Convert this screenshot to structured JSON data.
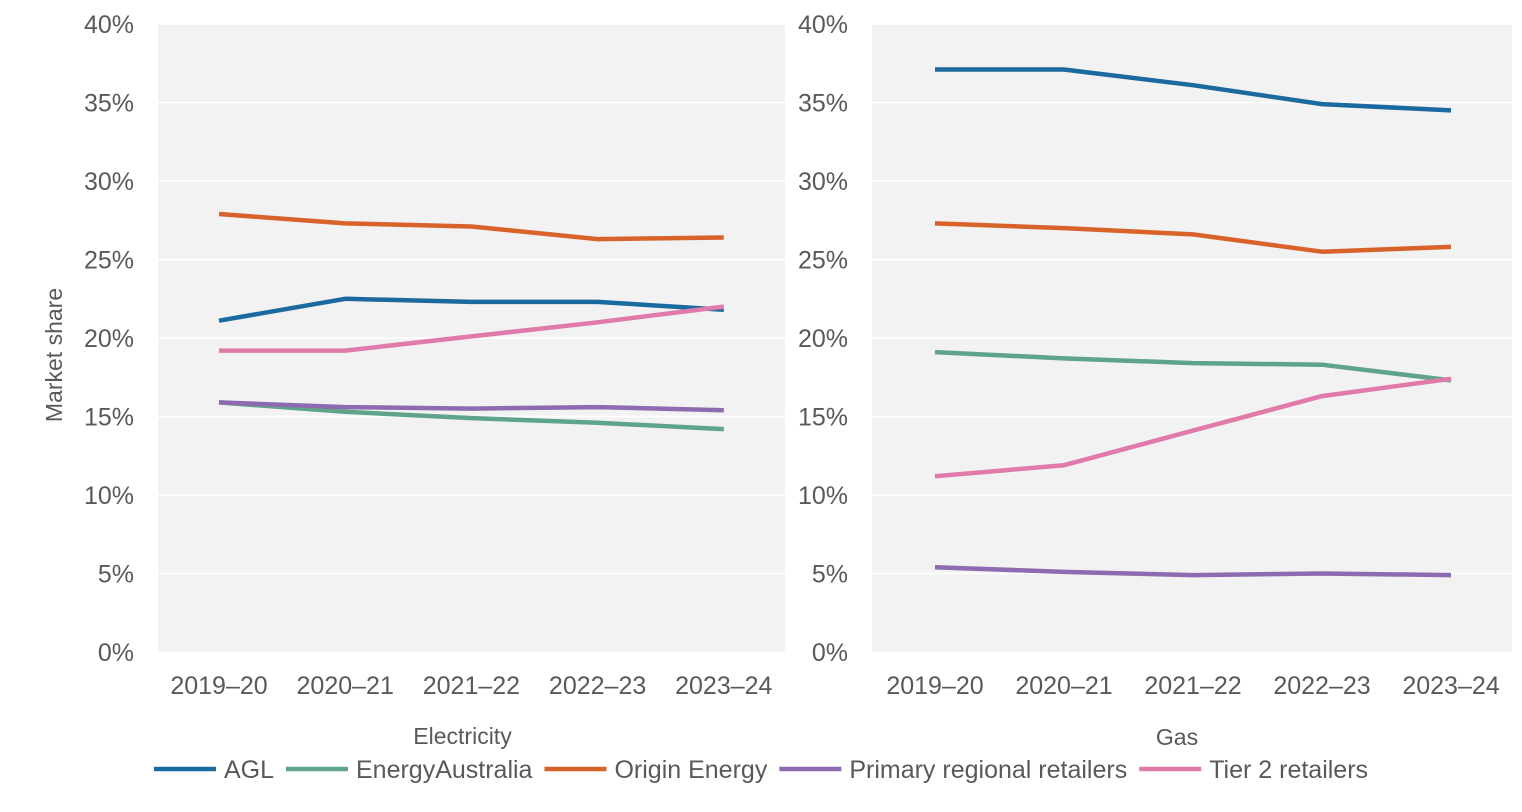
{
  "ylabel": "Market share",
  "legend": [
    {
      "name": "AGL",
      "color": "#1b6a9f"
    },
    {
      "name": "EnergyAustralia",
      "color": "#5fa38a"
    },
    {
      "name": "Origin Energy",
      "color": "#d9622b"
    },
    {
      "name": "Primary regional retailers",
      "color": "#8d6bb0"
    },
    {
      "name": "Tier 2 retailers",
      "color": "#e07aaa"
    }
  ],
  "chart_data": [
    {
      "type": "line",
      "title": "",
      "xlabel": "Electricity",
      "ylabel": "Market share",
      "categories": [
        "2019–20",
        "2020–21",
        "2021–22",
        "2022–23",
        "2023–24"
      ],
      "ylim": [
        0,
        40
      ],
      "y_ticks": [
        "0%",
        "5%",
        "10%",
        "15%",
        "20%",
        "25%",
        "30%",
        "35%",
        "40%"
      ],
      "grid": "horizontal",
      "series": [
        {
          "name": "AGL",
          "color": "#1b6a9f",
          "values": [
            21.1,
            22.5,
            22.3,
            22.3,
            21.8
          ]
        },
        {
          "name": "EnergyAustralia",
          "color": "#5fa38a",
          "values": [
            15.9,
            15.3,
            14.9,
            14.6,
            14.2
          ]
        },
        {
          "name": "Origin Energy",
          "color": "#d9622b",
          "values": [
            27.9,
            27.3,
            27.1,
            26.3,
            26.4
          ]
        },
        {
          "name": "Primary regional retailers",
          "color": "#8d6bb0",
          "values": [
            15.9,
            15.6,
            15.5,
            15.6,
            15.4
          ]
        },
        {
          "name": "Tier 2 retailers",
          "color": "#e07aaa",
          "values": [
            19.2,
            19.2,
            20.1,
            21.0,
            22.0
          ]
        }
      ]
    },
    {
      "type": "line",
      "title": "",
      "xlabel": "Gas",
      "ylabel": "",
      "categories": [
        "2019–20",
        "2020–21",
        "2021–22",
        "2022–23",
        "2023–24"
      ],
      "ylim": [
        0,
        40
      ],
      "y_ticks": [
        "0%",
        "5%",
        "10%",
        "15%",
        "20%",
        "25%",
        "30%",
        "35%",
        "40%"
      ],
      "grid": "horizontal",
      "series": [
        {
          "name": "AGL",
          "color": "#1b6a9f",
          "values": [
            37.1,
            37.1,
            36.1,
            34.9,
            34.5
          ]
        },
        {
          "name": "EnergyAustralia",
          "color": "#5fa38a",
          "values": [
            19.1,
            18.7,
            18.4,
            18.3,
            17.3
          ]
        },
        {
          "name": "Origin Energy",
          "color": "#d9622b",
          "values": [
            27.3,
            27.0,
            26.6,
            25.5,
            25.8
          ]
        },
        {
          "name": "Primary regional retailers",
          "color": "#8d6bb0",
          "values": [
            5.4,
            5.1,
            4.9,
            5.0,
            4.9
          ]
        },
        {
          "name": "Tier 2 retailers",
          "color": "#e07aaa",
          "values": [
            11.2,
            11.9,
            14.1,
            16.3,
            17.4
          ]
        }
      ]
    }
  ]
}
